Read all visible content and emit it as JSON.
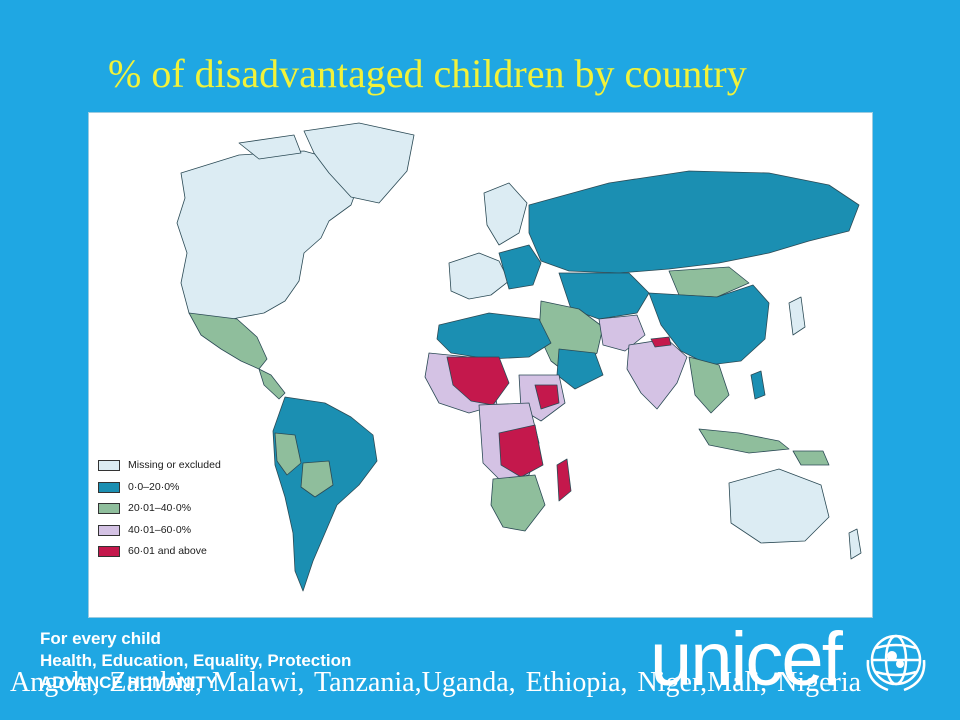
{
  "title": "% of disadvantaged children by country",
  "legend": [
    {
      "label": "Missing or excluded",
      "color": "#dcecf3"
    },
    {
      "label": "0·0–20·0%",
      "color": "#1b8fb2"
    },
    {
      "label": "20·01–40·0%",
      "color": "#8fbe9c"
    },
    {
      "label": "40·01–60·0%",
      "color": "#d4c2e4"
    },
    {
      "label": "60·01 and above",
      "color": "#c4184c"
    }
  ],
  "tagline": {
    "line1": "For every child",
    "line2": "Health, Education, Equality, Protection",
    "line3": "ADVANCE HUMANITY"
  },
  "brand": {
    "wordmark": "unicef",
    "emblem_icon": "unicef-globe-emblem-icon"
  },
  "footer_countries": "Angola, Zambia, Malawi, Tanzania,Uganda, Ethiopia, Niger,Mali, Nigeria",
  "colors": {
    "background": "#1fa7e3",
    "title": "#f2f23a",
    "ocean": "#ffffff",
    "missing": "#dcecf3",
    "band_0_20": "#1b8fb2",
    "band_20_40": "#8fbe9c",
    "band_40_60": "#d4c2e4",
    "band_60_plus": "#c4184c"
  }
}
